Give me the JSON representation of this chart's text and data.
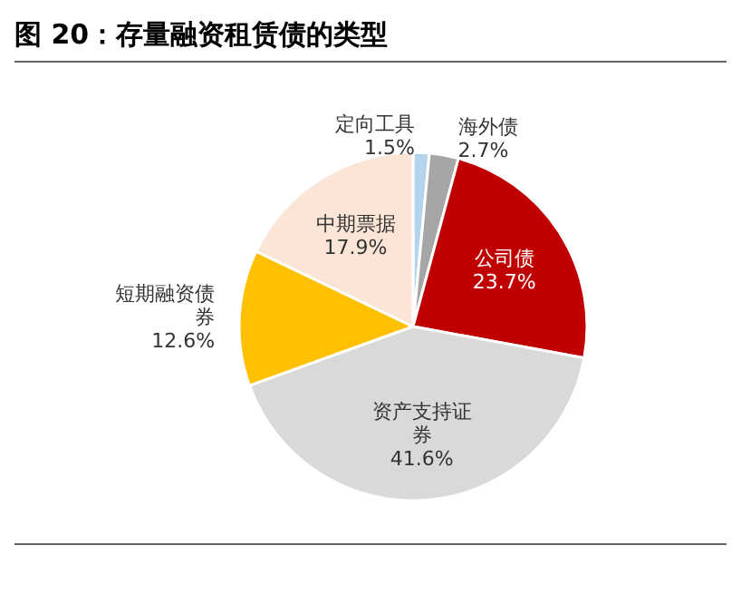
{
  "chart_data": {
    "type": "pie",
    "title": "图 20：存量融资租赁债的类型",
    "categories": [
      "定向工具",
      "海外债",
      "公司债",
      "资产支持证券",
      "短期融资债券",
      "中期票据"
    ],
    "values": [
      1.5,
      2.7,
      23.7,
      41.6,
      12.6,
      17.9
    ],
    "colors": [
      "#b4d4ee",
      "#a6a6a6",
      "#c00000",
      "#d9d9d9",
      "#ffc000",
      "#fbe5d6"
    ],
    "value_labels": [
      "1.5%",
      "2.7%",
      "23.7%",
      "41.6%",
      "12.6%",
      "17.9%"
    ]
  }
}
